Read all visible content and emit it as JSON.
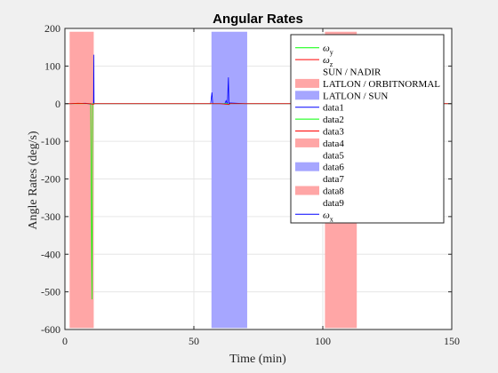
{
  "chart_data": {
    "type": "line",
    "title": "Angular Rates",
    "xlabel": "Time (min)",
    "ylabel": "Angle Rates (deg/s)",
    "xlim": [
      0,
      150
    ],
    "ylim": [
      -600,
      200
    ],
    "xticks": [
      0,
      50,
      100,
      150
    ],
    "yticks": [
      200,
      100,
      0,
      -100,
      -200,
      -300,
      -400,
      -500,
      -600
    ],
    "grid": true,
    "legend_position": "top-right",
    "shaded_regions": [
      {
        "x": [
          2,
          11
        ],
        "y": [
          -595,
          190
        ],
        "color": "#ffa6a6",
        "series": "LATLON / ORBITNORMAL"
      },
      {
        "x": [
          57,
          70.5
        ],
        "y": [
          -595,
          190
        ],
        "color": "#a6a6ff",
        "series": "LATLON / SUN"
      },
      {
        "x": [
          101,
          113
        ],
        "y": [
          -595,
          190
        ],
        "color": "#ffa6a6",
        "series": "data8"
      }
    ],
    "series": [
      {
        "name": "ω",
        "sub": "x",
        "color": "#0000ff",
        "points": [
          [
            0,
            0
          ],
          [
            2,
            0
          ],
          [
            8,
            1
          ],
          [
            10,
            -1
          ],
          [
            11.1,
            0
          ],
          [
            11.2,
            130
          ],
          [
            11.3,
            0
          ],
          [
            30,
            0
          ],
          [
            56.5,
            0
          ],
          [
            57,
            30
          ],
          [
            57.3,
            0
          ],
          [
            62,
            0
          ],
          [
            62.5,
            8
          ],
          [
            63,
            -2
          ],
          [
            63.4,
            70
          ],
          [
            63.6,
            0
          ],
          [
            64,
            2
          ],
          [
            70,
            0
          ],
          [
            150,
            0
          ]
        ]
      },
      {
        "name": "ω",
        "sub": "y",
        "color": "#00ff00",
        "points": [
          [
            0,
            0
          ],
          [
            2,
            0
          ],
          [
            10,
            0
          ],
          [
            10.5,
            -520
          ],
          [
            10.8,
            0
          ],
          [
            11.3,
            0
          ],
          [
            30,
            0
          ],
          [
            63,
            0
          ],
          [
            63.5,
            -3
          ],
          [
            64,
            0
          ],
          [
            150,
            0
          ]
        ]
      },
      {
        "name": "ω",
        "sub": "z",
        "color": "#ff0000",
        "points": [
          [
            0,
            0
          ],
          [
            2,
            0
          ],
          [
            5,
            1
          ],
          [
            10,
            0
          ],
          [
            11,
            -2
          ],
          [
            11.5,
            0
          ],
          [
            60,
            0
          ],
          [
            63.5,
            -2
          ],
          [
            64,
            0
          ],
          [
            150,
            0
          ]
        ]
      }
    ],
    "legend": [
      {
        "label": "ω",
        "sub": "y",
        "kind": "line",
        "color": "#00ff00"
      },
      {
        "label": "ω",
        "sub": "z",
        "kind": "line",
        "color": "#ff0000"
      },
      {
        "label": "SUN / NADIR",
        "kind": "none",
        "color": ""
      },
      {
        "label": "LATLON / ORBITNORMAL",
        "kind": "patch",
        "color": "#ffa6a6"
      },
      {
        "label": "LATLON / SUN",
        "kind": "patch",
        "color": "#a6a6ff"
      },
      {
        "label": "data1",
        "kind": "line",
        "color": "#0000ff"
      },
      {
        "label": "data2",
        "kind": "line",
        "color": "#00ff00"
      },
      {
        "label": "data3",
        "kind": "line",
        "color": "#ff0000"
      },
      {
        "label": "data4",
        "kind": "patch",
        "color": "#ffa6a6"
      },
      {
        "label": "data5",
        "kind": "none",
        "color": ""
      },
      {
        "label": "data6",
        "kind": "patch",
        "color": "#a6a6ff"
      },
      {
        "label": "data7",
        "kind": "none",
        "color": ""
      },
      {
        "label": "data8",
        "kind": "patch",
        "color": "#ffa6a6"
      },
      {
        "label": "data9",
        "kind": "none",
        "color": ""
      },
      {
        "label": "ω",
        "sub": "x",
        "kind": "line",
        "color": "#0000ff"
      }
    ]
  }
}
